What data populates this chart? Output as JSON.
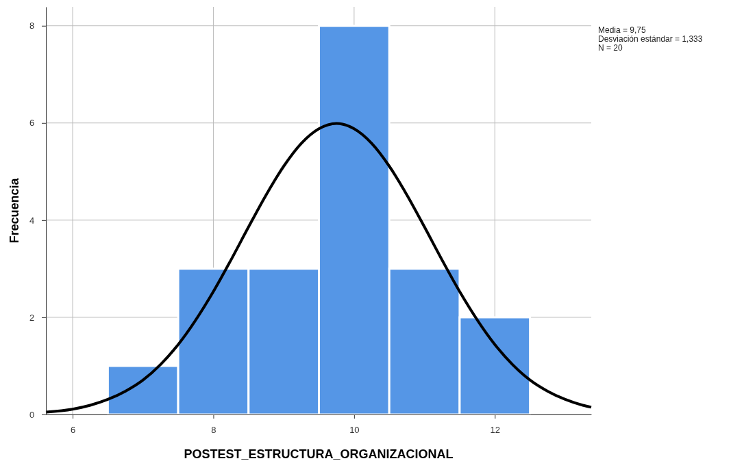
{
  "chart_data": {
    "type": "histogram",
    "xlabel": "POSTEST_ESTRUCTURA_ORGANIZACIONAL",
    "ylabel": "Frecuencia",
    "bins": [
      6.5,
      7.5,
      8.5,
      9.5,
      10.5,
      11.5,
      12.5
    ],
    "values": [
      1,
      3,
      3,
      8,
      3,
      2
    ],
    "color": "#5596e6",
    "series": [
      {
        "type": "line",
        "color": "#000000",
        "x": [
          5.62,
          6,
          6.25,
          6.5,
          6.75,
          7,
          7.25,
          7.5,
          8,
          8.25,
          8.5,
          8.75,
          9,
          9.25,
          9.5,
          9.75,
          10,
          10.25,
          10.5,
          10.75,
          11,
          11.25,
          11.5,
          12,
          12.25,
          12.5,
          12.75,
          13,
          13.25,
          13.37
        ],
        "values": [
          0.05,
          0.11,
          0.19,
          0.31,
          0.48,
          0.71,
          1.03,
          1.44,
          2.53,
          3.18,
          3.86,
          4.52,
          5.11,
          5.58,
          5.88,
          5.99,
          5.88,
          5.58,
          5.11,
          4.52,
          3.86,
          3.18,
          2.53,
          1.44,
          1.03,
          0.71,
          0.48,
          0.31,
          0.19,
          0.15
        ]
      }
    ],
    "xlim": [
      5.62,
      13.37
    ],
    "xticks": [
      6,
      8,
      10,
      12
    ],
    "ylim": [
      0,
      8.39
    ],
    "yticks": [
      0,
      2,
      4,
      6,
      8
    ],
    "grid": true,
    "annotations": [
      "Media = 9,75",
      "Desviación estándar = 1,333",
      "N = 20"
    ]
  }
}
